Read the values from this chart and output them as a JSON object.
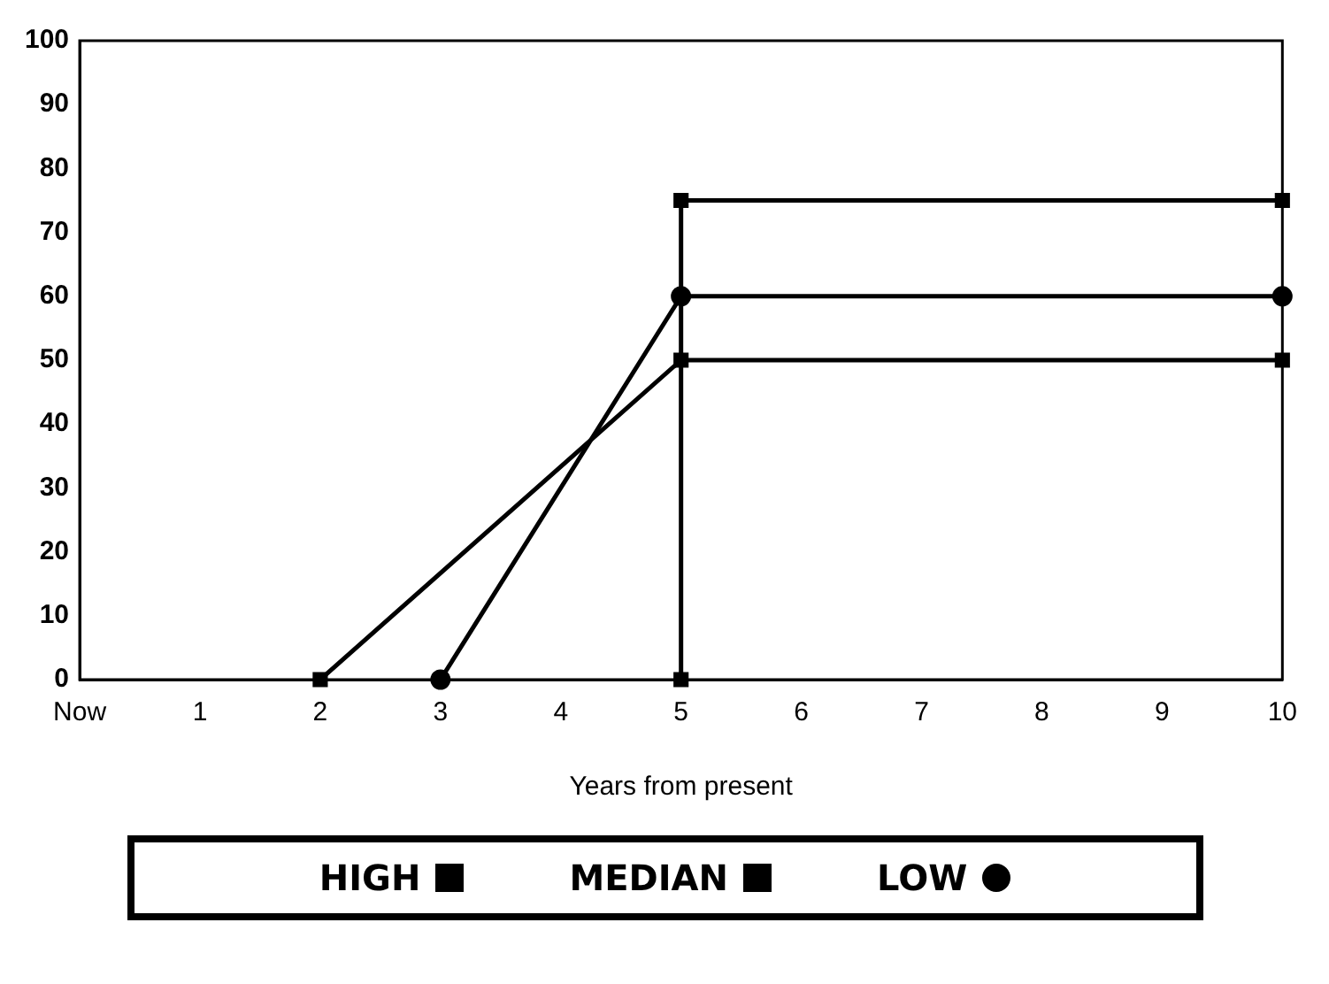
{
  "chart_data": {
    "type": "line",
    "xlabel": "Years from present",
    "xlim": [
      0,
      10
    ],
    "xticks": [
      {
        "value": 0,
        "label": "Now"
      },
      1,
      2,
      3,
      4,
      5,
      6,
      7,
      8,
      9,
      10
    ],
    "ylim": [
      0,
      100
    ],
    "yticks": [
      0,
      10,
      20,
      30,
      40,
      50,
      60,
      70,
      80,
      90,
      100
    ],
    "grid": false,
    "legend": "bottom",
    "series": [
      {
        "name": "HIGH",
        "color": "#000000",
        "marker": "square",
        "x": [
          5,
          5,
          10
        ],
        "values": [
          0,
          75,
          75
        ]
      },
      {
        "name": "MEDIAN",
        "color": "#000000",
        "marker": "square",
        "x": [
          2,
          5,
          10
        ],
        "values": [
          0,
          50,
          50
        ]
      },
      {
        "name": "LOW",
        "color": "#000000",
        "marker": "circle",
        "x": [
          3,
          5,
          10
        ],
        "values": [
          0,
          60,
          60
        ]
      }
    ]
  }
}
